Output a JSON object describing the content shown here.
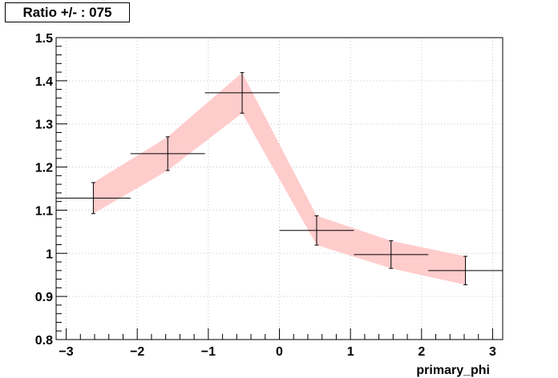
{
  "chart_data": {
    "type": "scatter",
    "title": "Ratio +/- : 075",
    "xlabel": "primary_phi",
    "ylabel": "",
    "xlim": [
      -3.1416,
      3.1416
    ],
    "ylim": [
      0.8,
      1.5
    ],
    "x_ticks": [
      -3,
      -2,
      -1,
      0,
      1,
      2,
      3
    ],
    "x_tick_labels": [
      "−3",
      "−2",
      "−1",
      "0",
      "1",
      "2",
      "3"
    ],
    "y_ticks": [
      0.8,
      0.9,
      1.0,
      1.1,
      1.2,
      1.3,
      1.4,
      1.5
    ],
    "y_tick_labels": [
      "0.8",
      "0.9",
      "1",
      "1.1",
      "1.2",
      "1.3",
      "1.4",
      "1.5"
    ],
    "grid": true,
    "points": [
      {
        "x": -2.618,
        "xerr": 0.5236,
        "y": 1.128,
        "yerr": 0.036
      },
      {
        "x": -1.571,
        "xerr": 0.5236,
        "y": 1.231,
        "yerr": 0.039
      },
      {
        "x": -0.524,
        "xerr": 0.5236,
        "y": 1.372,
        "yerr": 0.047
      },
      {
        "x": 0.524,
        "xerr": 0.5236,
        "y": 1.053,
        "yerr": 0.034
      },
      {
        "x": 1.571,
        "xerr": 0.5236,
        "y": 0.997,
        "yerr": 0.032
      },
      {
        "x": 2.618,
        "xerr": 0.5236,
        "y": 0.96,
        "yerr": 0.033
      }
    ],
    "band": {
      "color": "#ffcccc",
      "x": [
        -2.618,
        -1.571,
        -0.524,
        0.524,
        1.571,
        2.618
      ],
      "lower": [
        1.092,
        1.192,
        1.325,
        1.019,
        0.965,
        0.927
      ],
      "upper": [
        1.164,
        1.27,
        1.419,
        1.087,
        1.029,
        0.993
      ]
    },
    "colors": {
      "points": "#000000",
      "grid": "#c8c8c8",
      "axis": "#000000"
    }
  }
}
